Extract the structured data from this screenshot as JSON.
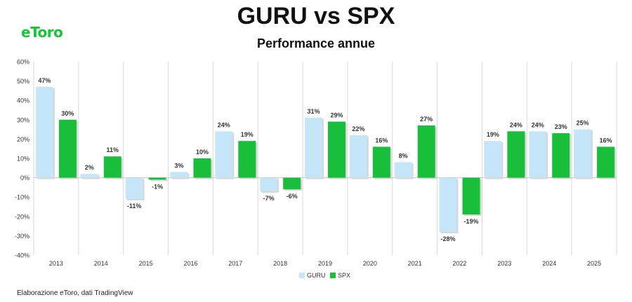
{
  "header": {
    "logo": "eToro",
    "title": "GURU vs SPX",
    "subtitle": "Performance annue"
  },
  "footer": {
    "source": "Elaborazione eToro, dati TradingView"
  },
  "colors": {
    "guru": "#c5e6f8",
    "spx": "#19bf3a",
    "grid": "#d9d9d9",
    "label": "#333333"
  },
  "chart_data": {
    "type": "bar",
    "categories": [
      "2013",
      "2014",
      "2015",
      "2016",
      "2017",
      "2018",
      "2019",
      "2020",
      "2021",
      "2022",
      "2023",
      "2024",
      "2025"
    ],
    "series": [
      {
        "name": "GURU",
        "values": [
          47,
          2,
          -11,
          3,
          24,
          -7,
          31,
          22,
          8,
          -28,
          19,
          24,
          25
        ],
        "labels": [
          "47%",
          "2%",
          "-11%",
          "3%",
          "24%",
          "-7%",
          "31%",
          "22%",
          "8%",
          "-28%",
          "19%",
          "24%",
          "25%"
        ]
      },
      {
        "name": "SPX",
        "values": [
          30,
          11,
          -1,
          10,
          19,
          -6,
          29,
          16,
          27,
          -19,
          24,
          23,
          16
        ],
        "labels": [
          "30%",
          "11%",
          "-1%",
          "10%",
          "19%",
          "-6%",
          "29%",
          "16%",
          "27%",
          "-19%",
          "24%",
          "23%",
          "16%"
        ]
      }
    ],
    "ylim": [
      -40,
      60
    ],
    "yticks": [
      60,
      50,
      40,
      30,
      20,
      10,
      0,
      -10,
      -20,
      -30,
      -40
    ],
    "ytick_labels": [
      "60%",
      "50%",
      "40%",
      "30%",
      "20%",
      "10%",
      "0%",
      "-10%",
      "-20%",
      "-30%",
      "-40%"
    ],
    "grid": "vertical",
    "legend": "bottom-center",
    "xlabel": "",
    "ylabel": ""
  }
}
